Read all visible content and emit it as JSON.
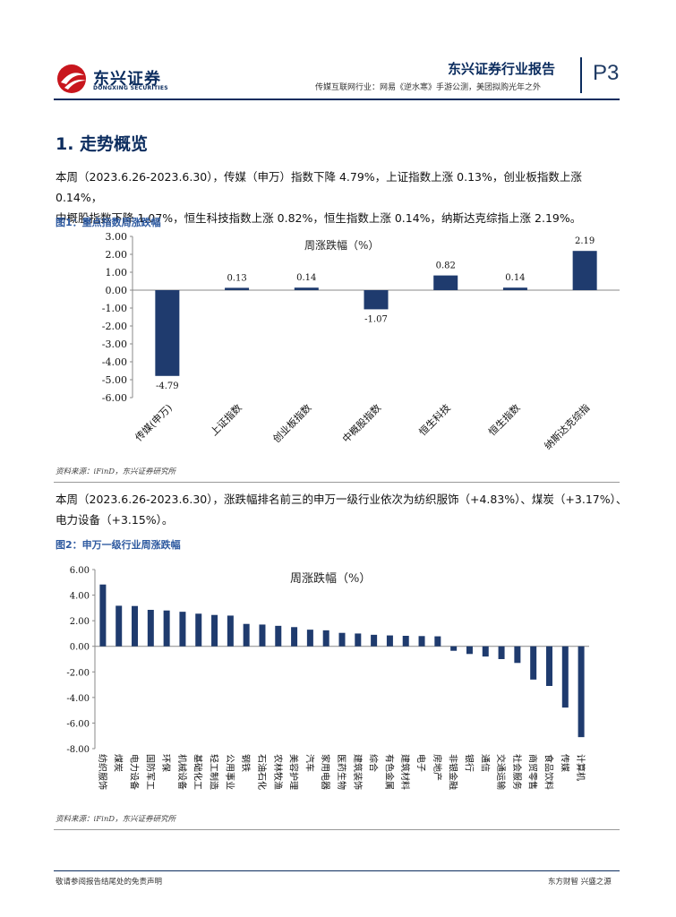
{
  "header": {
    "logo_cn": "东兴证券",
    "logo_en": "DONGXING SECURITIES",
    "brand": "东兴证券行业报告",
    "subtitle": "传媒互联网行业：网易《逆水寒》手游公测，美团拟购光年之外",
    "page": "P3"
  },
  "section": {
    "title": "1. 走势概览"
  },
  "para1": {
    "line1": "本周（2023.6.26-2023.6.30），传媒（申万）指数下降 4.79%，上证指数上涨 0.13%，创业板指数上涨 0.14%，",
    "line2": "中概股指数下降 1.07%，恒生科技指数上涨 0.82%，恒生指数上涨 0.14%，纳斯达克综指上涨 2.19%。"
  },
  "fig1": {
    "title": "图1：重点指数周涨跌幅",
    "source": "资料来源：iFinD，东兴证券研究所"
  },
  "para2": {
    "line1": "本周（2023.6.26-2023.6.30），涨跌幅排名前三的申万一级行业依次为纺织服饰（+4.83%）、煤炭（+3.17%）、",
    "line2": "电力设备（+3.15%）。"
  },
  "fig2": {
    "title": "图2：申万一级行业周涨跌幅",
    "source": "资料来源：iFinD，东兴证券研究所"
  },
  "footer": {
    "left": "敬请参阅报告结尾处的免责声明",
    "right": "东方财智 兴盛之源"
  },
  "colors": {
    "bar": "#1f3b6e",
    "brand": "#0b2c5e",
    "fig_title": "#2e5aa0",
    "logo_red": "#c8161d"
  },
  "chart_data": [
    {
      "type": "bar",
      "title": "周涨跌幅（%）",
      "categories": [
        "传媒(申万)",
        "上证指数",
        "创业板指数",
        "中概股指数",
        "恒生科技",
        "恒生指数",
        "纳斯达克综指"
      ],
      "values": [
        -4.79,
        0.13,
        0.14,
        -1.07,
        0.82,
        0.14,
        2.19
      ],
      "value_labels": [
        "-4.79",
        "0.13",
        "0.14",
        "-1.07",
        "0.82",
        "0.14",
        "2.19"
      ],
      "ylim": [
        -6,
        3
      ],
      "yticks": [
        "3.00",
        "2.00",
        "1.00",
        "0.00",
        "-1.00",
        "-2.00",
        "-3.00",
        "-4.00",
        "-5.00",
        "-6.00"
      ],
      "grid": false,
      "legend": "none"
    },
    {
      "type": "bar",
      "title": "周涨跌幅（%）",
      "categories": [
        "纺织服饰",
        "煤炭",
        "电力设备",
        "国防军工",
        "环保",
        "机械设备",
        "基础化工",
        "轻工制造",
        "公用事业",
        "钢铁",
        "石油石化",
        "农林牧渔",
        "美容护理",
        "汽车",
        "家用电器",
        "医药生物",
        "建筑装饰",
        "综合",
        "有色金属",
        "建筑材料",
        "电子",
        "房地产",
        "非银金融",
        "银行",
        "通信",
        "交通运输",
        "社会服务",
        "商贸零售",
        "食品饮料",
        "传媒",
        "计算机"
      ],
      "values": [
        4.83,
        3.17,
        3.15,
        2.85,
        2.8,
        2.7,
        2.55,
        2.45,
        2.4,
        1.75,
        1.7,
        1.6,
        1.5,
        1.3,
        1.25,
        1.05,
        1.0,
        0.9,
        0.85,
        0.82,
        0.8,
        0.78,
        -0.35,
        -0.6,
        -0.8,
        -1.0,
        -1.3,
        -2.6,
        -3.1,
        -4.79,
        -7.1
      ],
      "ylim": [
        -8,
        6
      ],
      "yticks": [
        "6.00",
        "4.00",
        "2.00",
        "0.00",
        "-2.00",
        "-4.00",
        "-6.00",
        "-8.00"
      ],
      "grid": false,
      "legend": "none"
    }
  ]
}
